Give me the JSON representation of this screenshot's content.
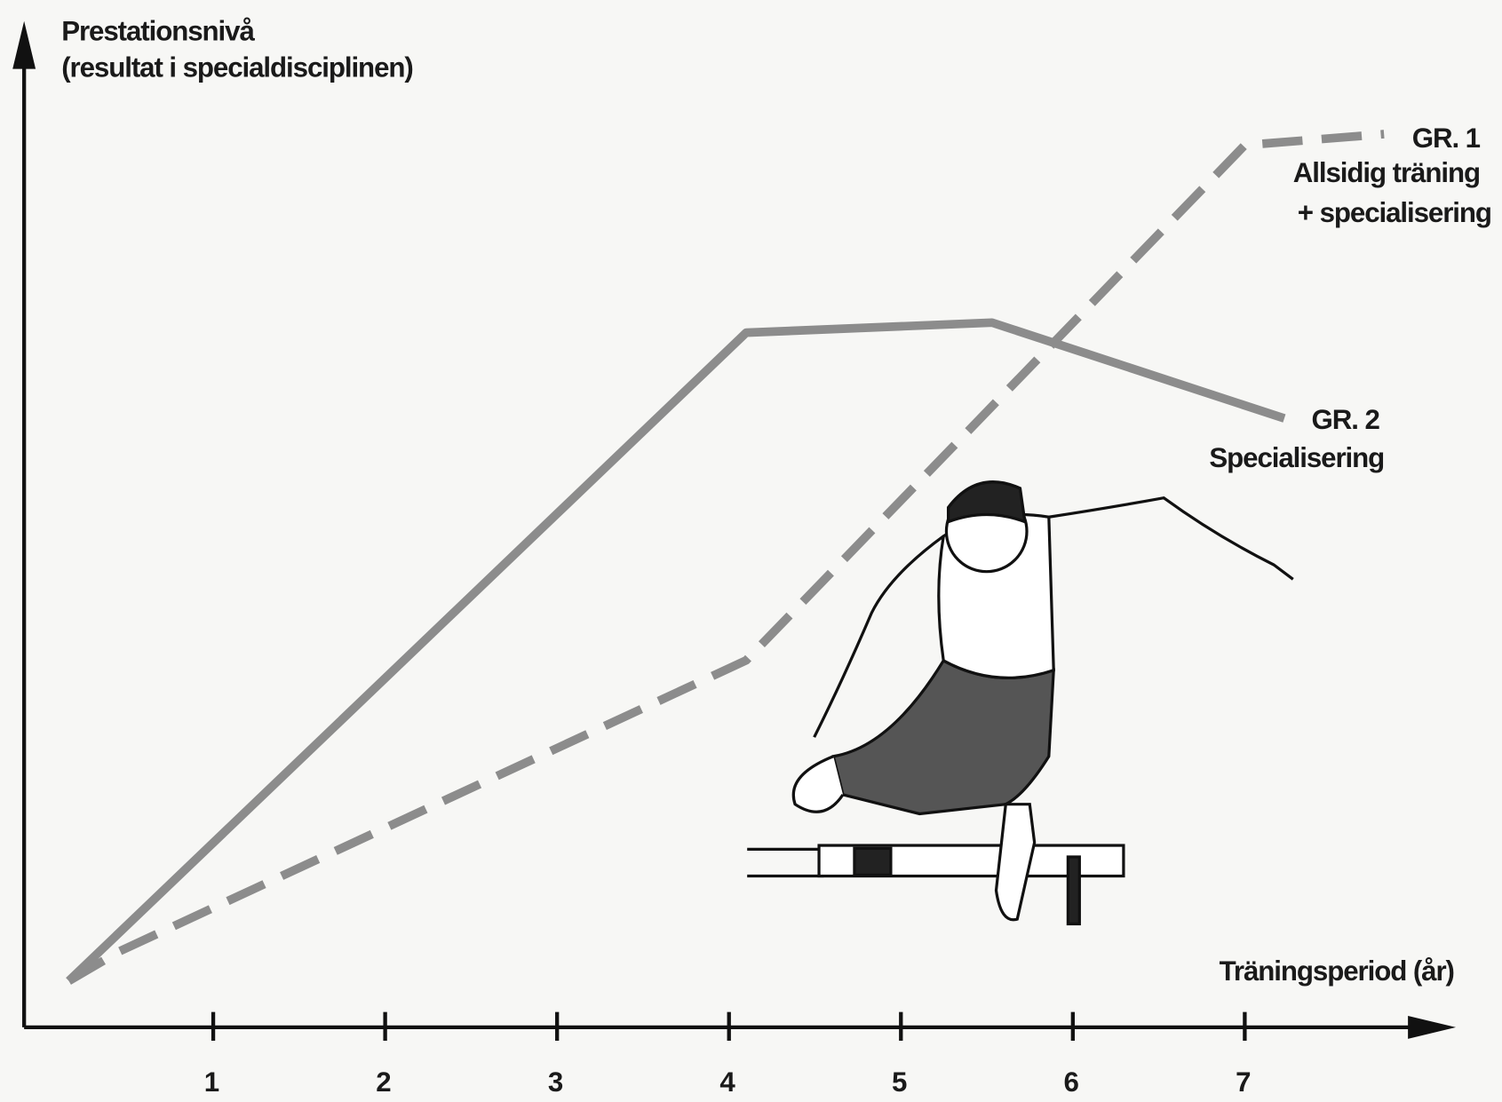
{
  "chart_data": {
    "type": "line",
    "y_label": [
      "Prestationsnivå",
      "(resultat i specialdisciplinen)"
    ],
    "x_label": "Träningsperiod (år)",
    "xlim": [
      -0.1,
      8.2
    ],
    "ylim": [
      0,
      100
    ],
    "xticks": [
      1,
      2,
      3,
      4,
      5,
      6,
      7
    ],
    "series": [
      {
        "name": "GR. 1",
        "description": [
          "Allsidig träning",
          "+ specialisering"
        ],
        "color": "#8c8c8c",
        "dashed": true,
        "x": [
          0.16,
          0.45,
          4.1,
          7.0,
          7.81
        ],
        "values": [
          4.6,
          7.5,
          36.4,
          87.5,
          88.6
        ]
      },
      {
        "name": "GR. 2",
        "description": [
          "Specialisering"
        ],
        "color": "#8c8c8c",
        "dashed": false,
        "x": [
          0.16,
          4.1,
          5.53,
          7.23
        ],
        "values": [
          4.6,
          68.9,
          69.9,
          60.4
        ]
      }
    ]
  }
}
